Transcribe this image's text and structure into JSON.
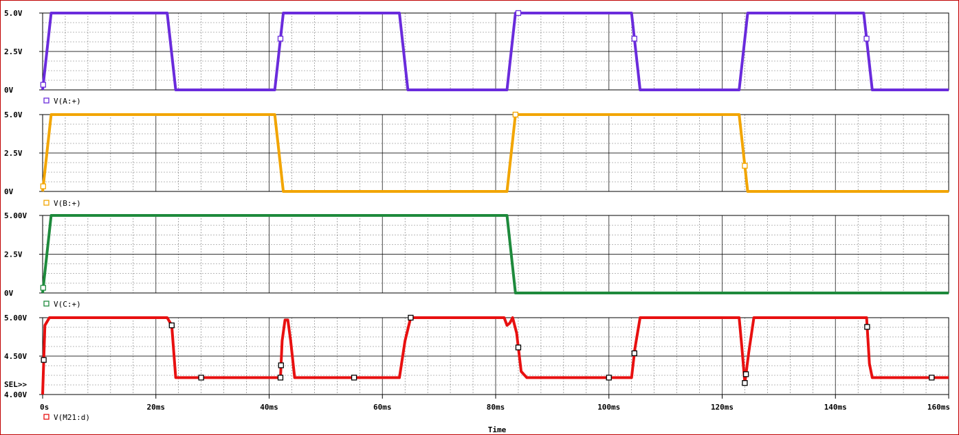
{
  "chart_data": {
    "type": "line",
    "x_unit": "ms",
    "xlim": [
      0,
      160
    ],
    "x_ticks": [
      "0s",
      "20ms",
      "40ms",
      "60ms",
      "80ms",
      "100ms",
      "120ms",
      "140ms",
      "160ms"
    ],
    "xlabel": "Time",
    "sel_marker": "SEL>>",
    "grid": true,
    "panels": [
      {
        "series_name": "V(A:+)",
        "color": "#6a2bdc",
        "ylim": [
          0,
          5
        ],
        "y_ticks": [
          "5.0V",
          "2.5V",
          "0V"
        ],
        "x": [
          0,
          1.5,
          22,
          23.5,
          41,
          42.5,
          63,
          64.5,
          82,
          83.5,
          104,
          105.5,
          123,
          124.5,
          145,
          146.5,
          160
        ],
        "y": [
          0,
          5,
          5,
          0,
          0,
          5,
          5,
          0,
          0,
          5,
          5,
          0,
          0,
          5,
          5,
          0,
          0
        ],
        "marker_x": [
          0.1,
          42,
          84,
          104.5,
          145.5
        ]
      },
      {
        "series_name": "V(B:+)",
        "color": "#f2a500",
        "ylim": [
          0,
          5
        ],
        "y_ticks": [
          "5.0V",
          "2.5V",
          "0V"
        ],
        "x": [
          0,
          1.5,
          41,
          42.5,
          82,
          83.5,
          123,
          124.5,
          160
        ],
        "y": [
          0,
          5,
          5,
          0,
          0,
          5,
          5,
          0,
          0
        ],
        "marker_x": [
          0.1,
          83.5,
          124
        ]
      },
      {
        "series_name": "V(C:+)",
        "color": "#1e8a3c",
        "ylim": [
          0,
          5
        ],
        "y_ticks": [
          "5.00V",
          "2.5V",
          "0V"
        ],
        "x": [
          0,
          1.5,
          82,
          83.5,
          160
        ],
        "y": [
          0,
          5,
          5,
          0,
          0
        ],
        "marker_x": [
          0.1
        ]
      },
      {
        "series_name": "V(M21:d)",
        "color": "#e81010",
        "ylim": [
          4.0,
          5.0
        ],
        "y_ticks": [
          "5.00V",
          "4.50V",
          "4.00V"
        ],
        "x": [
          0,
          0.4,
          1.2,
          22,
          22.8,
          23.5,
          42,
          42.3,
          42.8,
          43.3,
          43.8,
          44.5,
          63,
          64,
          65,
          81.5,
          82,
          82.5,
          83,
          83.7,
          84.5,
          85.5,
          104,
          104.6,
          105.5,
          123,
          123.5,
          124,
          124.7,
          125.6,
          145.5,
          146,
          146.5,
          160
        ],
        "y": [
          4.0,
          4.9,
          5.0,
          5.0,
          4.9,
          4.22,
          4.22,
          4.7,
          4.97,
          4.97,
          4.7,
          4.22,
          4.22,
          4.7,
          5.0,
          5.0,
          4.9,
          4.93,
          5.0,
          4.8,
          4.3,
          4.22,
          4.22,
          4.6,
          5.0,
          5.0,
          4.6,
          4.15,
          4.55,
          5.0,
          5.0,
          4.4,
          4.22,
          4.22
        ],
        "marker_x": [
          0.2,
          22.8,
          28,
          42,
          42.1,
          55,
          65,
          84,
          100,
          104.5,
          124,
          124.2,
          145.6,
          157
        ]
      }
    ]
  },
  "markers": {
    "color": "#000000"
  },
  "frame": {
    "color": "#c00000"
  },
  "grid_color": "#000000"
}
